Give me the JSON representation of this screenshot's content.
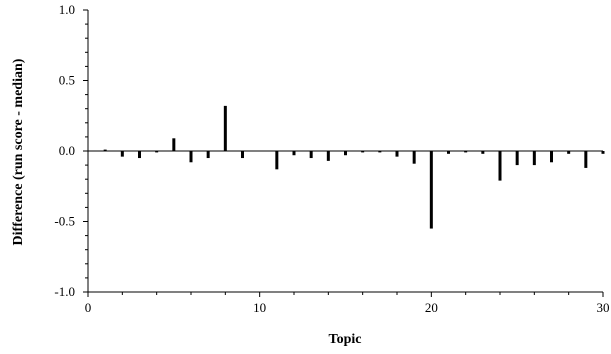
{
  "chart_data": {
    "type": "bar",
    "xlabel": "Topic",
    "ylabel": "Difference (run score - median)",
    "xlim": [
      0,
      30
    ],
    "ylim": [
      -1.0,
      1.0
    ],
    "x_ticks": [
      0,
      10,
      20,
      30
    ],
    "x_tick_labels": [
      "0",
      "10",
      "20",
      "30"
    ],
    "y_ticks": [
      -1.0,
      -0.5,
      0.0,
      0.5,
      1.0
    ],
    "y_tick_labels": [
      "-1.0",
      "-0.5",
      "0.0",
      "0.5",
      "1.0"
    ],
    "grid": false,
    "x": [
      1,
      2,
      3,
      4,
      5,
      6,
      7,
      8,
      9,
      10,
      11,
      12,
      13,
      14,
      15,
      16,
      17,
      18,
      19,
      20,
      21,
      22,
      23,
      24,
      25,
      26,
      27,
      28,
      29,
      30
    ],
    "values": [
      0.01,
      -0.04,
      -0.05,
      -0.01,
      0.09,
      -0.08,
      -0.05,
      0.32,
      -0.05,
      0.0,
      -0.13,
      -0.03,
      -0.05,
      -0.07,
      -0.03,
      -0.01,
      -0.01,
      -0.04,
      -0.09,
      -0.55,
      -0.02,
      -0.01,
      -0.02,
      -0.21,
      -0.1,
      -0.1,
      -0.08,
      -0.02,
      -0.12,
      -0.02
    ]
  }
}
